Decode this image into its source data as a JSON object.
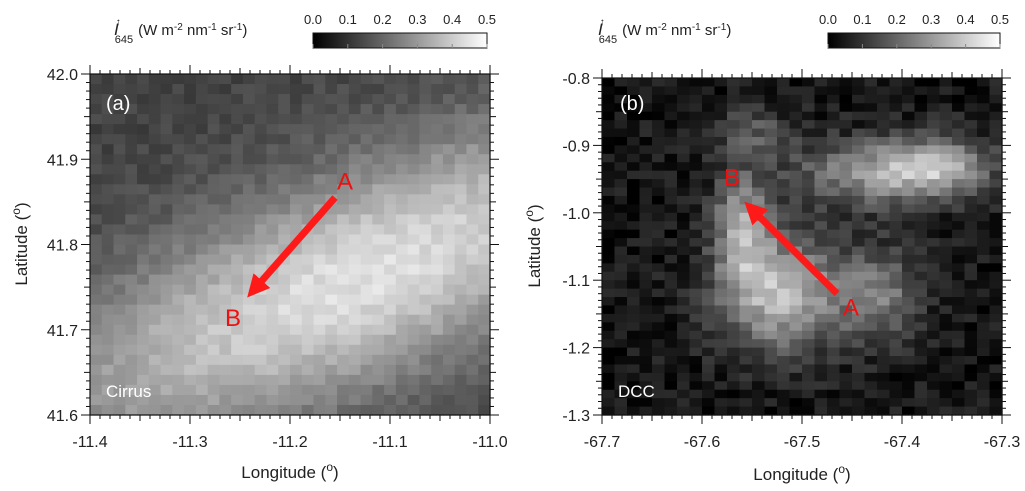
{
  "chart_data": [
    {
      "type": "heatmap",
      "panel_label": "(a)",
      "cloud_type": "Cirrus",
      "xlabel": "Longitude (o)",
      "ylabel": "Latitude (o)",
      "xlim": [
        -11.4,
        -11.0
      ],
      "ylim": [
        41.6,
        42.0
      ],
      "x_ticks": [
        -11.4,
        -11.3,
        -11.2,
        -11.1,
        -11.0
      ],
      "x_tick_labels": [
        "-11.4",
        "-11.3",
        "-11.2",
        "-11.1",
        "-11.0"
      ],
      "y_ticks": [
        41.6,
        41.7,
        41.8,
        41.9,
        42.0
      ],
      "y_tick_labels": [
        "41.6",
        "41.7",
        "41.8",
        "41.9",
        "42.0"
      ],
      "colorbar": {
        "title_symbol": "I",
        "title_subscript": "645",
        "title_units": "(W m-2 nm-1 sr-1)",
        "range": [
          0.0,
          0.5
        ],
        "ticks": [
          0.0,
          0.1,
          0.2,
          0.3,
          0.4,
          0.5
        ],
        "tick_labels": [
          "0.0",
          "0.1",
          "0.2",
          "0.3",
          "0.4",
          "0.5"
        ]
      },
      "track": {
        "start_label": "A",
        "end_label": "B",
        "start": {
          "lon": -11.155,
          "lat": 41.855
        },
        "end": {
          "lon": -11.245,
          "lat": 41.735
        }
      },
      "field": {
        "model": "band",
        "base": 0.13,
        "peak": 0.44,
        "center": {
          "lon": -11.13,
          "lat": 41.76
        },
        "axis_angle_deg": 27,
        "half_width_along": 0.26,
        "half_width_across": 0.085,
        "noise": 0.025,
        "grid": [
          34,
          34
        ]
      }
    },
    {
      "type": "heatmap",
      "panel_label": "(b)",
      "cloud_type": "DCC",
      "xlabel": "Longitude (o)",
      "ylabel": "Latitude (o)",
      "xlim": [
        -67.7,
        -67.3
      ],
      "ylim": [
        -1.3,
        -0.8
      ],
      "x_ticks": [
        -67.7,
        -67.6,
        -67.5,
        -67.4,
        -67.3
      ],
      "x_tick_labels": [
        "-67.7",
        "-67.6",
        "-67.5",
        "-67.4",
        "-67.3"
      ],
      "y_ticks": [
        -1.3,
        -1.2,
        -1.1,
        -1.0,
        -0.9,
        -0.8
      ],
      "y_tick_labels": [
        "-1.3",
        "-1.2",
        "-1.1",
        "-1.0",
        "-0.9",
        "-0.8"
      ],
      "colorbar": {
        "title_symbol": "I",
        "title_subscript": "645",
        "title_units": "(W m-2 nm-1 sr-1)",
        "range": [
          0.0,
          0.5
        ],
        "ticks": [
          0.0,
          0.1,
          0.2,
          0.3,
          0.4,
          0.5
        ],
        "tick_labels": [
          "0.0",
          "0.1",
          "0.2",
          "0.3",
          "0.4",
          "0.5"
        ]
      },
      "track": {
        "start_label": "A",
        "end_label": "B",
        "start": {
          "lon": -67.465,
          "lat": -1.12
        },
        "end": {
          "lon": -67.56,
          "lat": -0.98
        }
      },
      "field": {
        "model": "blobs",
        "base": 0.04,
        "noise": 0.05,
        "grid": [
          32,
          40
        ],
        "blobs": [
          {
            "lon": -67.52,
            "lat": -1.12,
            "amp": 0.32,
            "sx": 0.045,
            "sy": 0.06
          },
          {
            "lon": -67.56,
            "lat": -1.02,
            "amp": 0.26,
            "sx": 0.02,
            "sy": 0.06
          },
          {
            "lon": -67.42,
            "lat": -0.94,
            "amp": 0.26,
            "sx": 0.06,
            "sy": 0.035
          },
          {
            "lon": -67.36,
            "lat": -0.93,
            "amp": 0.2,
            "sx": 0.035,
            "sy": 0.03
          },
          {
            "lon": -67.42,
            "lat": -1.12,
            "amp": 0.18,
            "sx": 0.03,
            "sy": 0.05
          },
          {
            "lon": -67.55,
            "lat": -0.88,
            "amp": 0.12,
            "sx": 0.03,
            "sy": 0.025
          }
        ]
      }
    }
  ]
}
